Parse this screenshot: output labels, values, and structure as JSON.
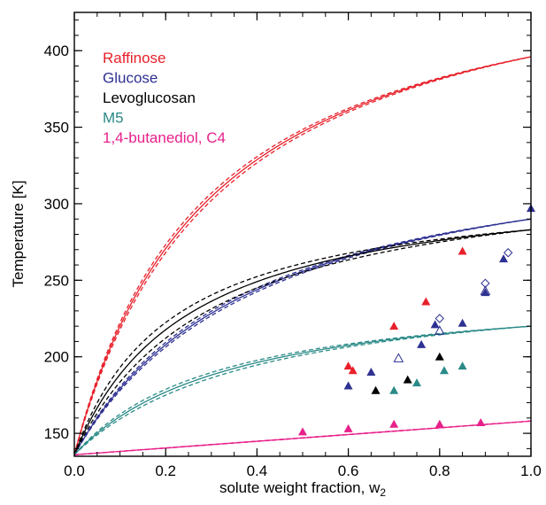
{
  "chart_data": {
    "type": "line",
    "title": "",
    "xlabel_main": "solute weight fraction, w",
    "xlabel_sub": "2",
    "ylabel": "Temperature [K]",
    "xlim": [
      0.0,
      1.0
    ],
    "ylim": [
      135,
      425
    ],
    "xticks": [
      0.0,
      0.2,
      0.4,
      0.6,
      0.8,
      1.0
    ],
    "xtick_labels": [
      "0.0",
      "0.2",
      "0.4",
      "0.6",
      "0.8",
      "1.0"
    ],
    "yticks": [
      150,
      200,
      250,
      300,
      350,
      400
    ],
    "ytick_labels": [
      "150",
      "200",
      "250",
      "300",
      "350",
      "400"
    ],
    "grid": false,
    "legend_position": "top-left",
    "series": [
      {
        "name": "Raffinose",
        "color": "#e8202a",
        "tg_solvent": 136,
        "tg_solute": 396,
        "k": 4.3,
        "band": 0.04,
        "data_filled": [
          [
            0.6,
            194
          ],
          [
            0.61,
            191
          ],
          [
            0.7,
            220
          ],
          [
            0.77,
            236
          ],
          [
            0.85,
            269
          ]
        ],
        "data_open": []
      },
      {
        "name": "Glucose",
        "color": "#2e3192",
        "tg_solvent": 136,
        "tg_solute": 290,
        "k": 3.5,
        "band": 0.04,
        "data_filled": [
          [
            0.6,
            181
          ],
          [
            0.65,
            190
          ],
          [
            0.76,
            208
          ],
          [
            0.79,
            221
          ],
          [
            0.85,
            222
          ],
          [
            0.9,
            242
          ],
          [
            0.94,
            264
          ],
          [
            1.0,
            297
          ]
        ],
        "data_open_diamond": [
          [
            0.8,
            225
          ],
          [
            0.9,
            248
          ],
          [
            0.95,
            268
          ]
        ],
        "data_open_triangle": [
          [
            0.71,
            199
          ],
          [
            0.8,
            217
          ],
          [
            0.9,
            243
          ]
        ]
      },
      {
        "name": "Levoglucosan",
        "color": "#000000",
        "tg_solvent": 136,
        "tg_solute": 283,
        "k": 5.0,
        "band": 0.14,
        "data_filled": [
          [
            0.66,
            178
          ],
          [
            0.73,
            185
          ],
          [
            0.8,
            200
          ]
        ],
        "data_open": []
      },
      {
        "name": "M5",
        "color": "#2a8a87",
        "tg_solvent": 136,
        "tg_solute": 220,
        "k": 3.8,
        "band": 0.09,
        "data_filled": [
          [
            0.7,
            178
          ],
          [
            0.75,
            183
          ],
          [
            0.81,
            191
          ],
          [
            0.85,
            194
          ]
        ],
        "data_open": []
      },
      {
        "name": "1,4-butanediol, C4",
        "color": "#e8208a",
        "tg_solvent": 136,
        "tg_solute": 158,
        "k": 1.0,
        "band": 0.02,
        "data_filled": [
          [
            0.5,
            151
          ],
          [
            0.6,
            153
          ],
          [
            0.7,
            156
          ],
          [
            0.8,
            156
          ],
          [
            0.89,
            157
          ]
        ],
        "data_open": []
      }
    ]
  }
}
